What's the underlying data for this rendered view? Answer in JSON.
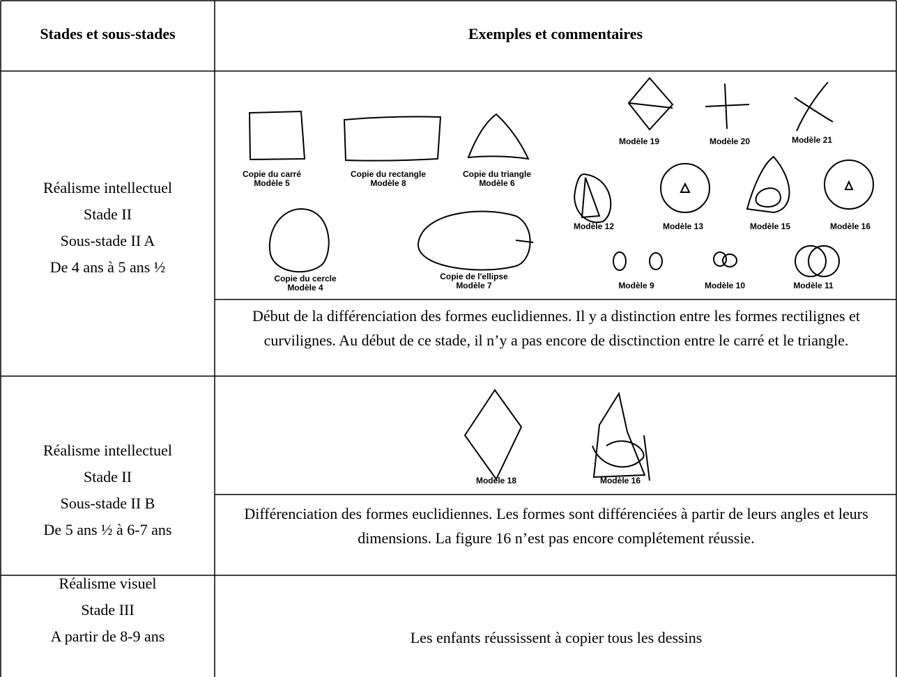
{
  "table": {
    "header": [
      "Stades et sous-stades",
      "Exemples et commentaires"
    ],
    "rows": [
      {
        "stage": [
          "Réalisme intellectuel",
          "Stade II",
          "Sous-stade II A",
          "De 4 ans à 5 ans ½"
        ],
        "figures": [
          [
            "Copie du carré",
            "Modèle 5"
          ],
          [
            "Copie du rectangle",
            "Modèle 8"
          ],
          [
            "Copie du triangle",
            "Modèle 6"
          ],
          [
            "Copie du cercle",
            "Modèle 4"
          ],
          [
            "Copie de l'ellipse",
            "Modèle 7"
          ],
          [
            "Modèle 19"
          ],
          [
            "Modèle 20"
          ],
          [
            "Modèle 21"
          ],
          [
            "Modèle 12"
          ],
          [
            "Modèle 13"
          ],
          [
            "Modèle 15"
          ],
          [
            "Modèle 16"
          ],
          [
            "Modèle 9"
          ],
          [
            "Modèle 10"
          ],
          [
            "Modèle 11"
          ]
        ],
        "comment": "Début de la différenciation des formes euclidiennes. Il y a distinction entre les formes rectilignes et curvilignes. Au début de ce stade, il n’y a pas encore de disctinction entre le carré et le triangle."
      },
      {
        "stage": [
          "Réalisme intellectuel",
          "Stade II",
          "Sous-stade II B",
          "De 5 ans ½ à 6-7 ans"
        ],
        "figures": [
          [
            "Modèle 18"
          ],
          [
            "Modèle 16"
          ]
        ],
        "comment": "Différenciation des formes euclidiennes. Les formes sont différenciées à partir de leurs angles et leurs dimensions. La figure 16 n’est pas encore complétement réussie."
      },
      {
        "stage": [
          "Réalisme visuel",
          "Stade III",
          "A partir de 8-9 ans"
        ],
        "comment": "Les enfants réussissent à copier tous les dessins"
      }
    ]
  }
}
